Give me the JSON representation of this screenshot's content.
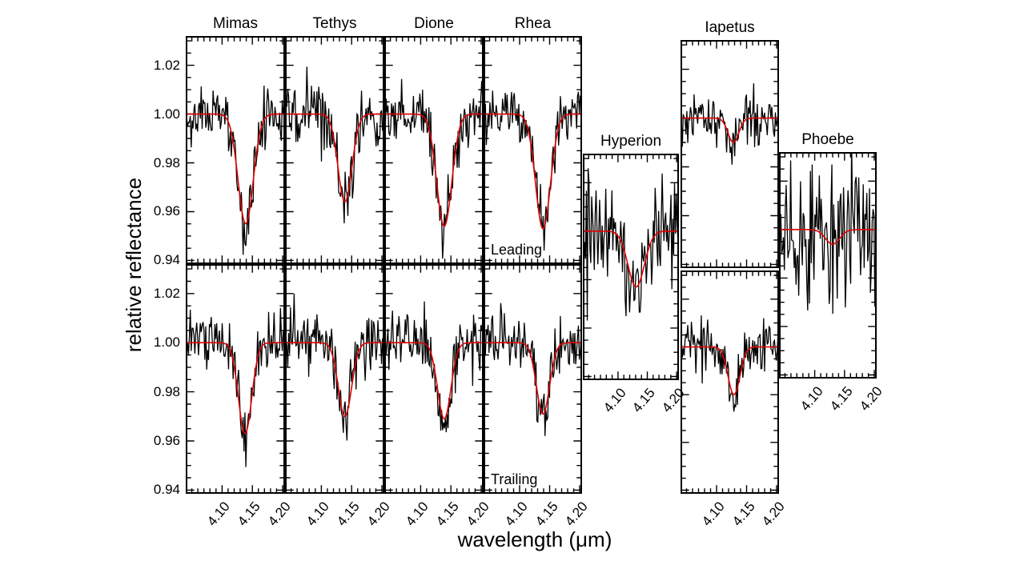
{
  "chart_data": {
    "type": "line",
    "xlabel": "wavelength (μm)",
    "ylabel": "relative reflectance",
    "x_range": [
      4.04,
      4.204
    ],
    "y_range": [
      0.9385,
      1.032
    ],
    "x_ticks": {
      "major": [
        4.1,
        4.15,
        4.2
      ],
      "labels": [
        "4.10",
        "4.15",
        "4.20"
      ],
      "minor_step": 0.01,
      "minor_start": 4.05,
      "minor_end": 4.2
    },
    "y_ticks": {
      "major": [
        1.02,
        1.0,
        0.98,
        0.96,
        0.94
      ],
      "labels": [
        "1.02",
        "1.00",
        "0.98",
        "0.96",
        "0.94"
      ],
      "minor_step": 0.005,
      "minor_start": 0.94,
      "minor_end": 1.03
    },
    "colors": {
      "spectrum": "#000000",
      "fit": "#e00000",
      "axis": "#000000",
      "background": "#ffffff"
    },
    "hemisphere_labels": {
      "leading": "Leading",
      "trailing": "Trailing"
    },
    "panels": [
      {
        "id": "mimas-leading",
        "moon": "Mimas",
        "hemisphere": "leading",
        "title": "Mimas",
        "fit": {
          "center_um": 4.139,
          "sigma_um": 0.0125,
          "band_depth": 0.045,
          "continuum": 1.0
        },
        "noise_sigma": 0.0062,
        "n_points": 110,
        "noise_seed": 11
      },
      {
        "id": "tethys-leading",
        "moon": "Tethys",
        "hemisphere": "leading",
        "title": "Tethys",
        "fit": {
          "center_um": 4.139,
          "sigma_um": 0.0115,
          "band_depth": 0.036,
          "continuum": 1.0
        },
        "noise_sigma": 0.0062,
        "n_points": 110,
        "noise_seed": 22
      },
      {
        "id": "dione-leading",
        "moon": "Dione",
        "hemisphere": "leading",
        "title": "Dione",
        "fit": {
          "center_um": 4.139,
          "sigma_um": 0.0125,
          "band_depth": 0.046,
          "continuum": 1.0
        },
        "noise_sigma": 0.0065,
        "n_points": 110,
        "noise_seed": 33
      },
      {
        "id": "rhea-leading",
        "moon": "Rhea",
        "hemisphere": "leading",
        "title": "Rhea",
        "corner_label": "Leading",
        "fit": {
          "center_um": 4.139,
          "sigma_um": 0.0125,
          "band_depth": 0.047,
          "continuum": 1.0
        },
        "noise_sigma": 0.006,
        "n_points": 110,
        "noise_seed": 44
      },
      {
        "id": "mimas-trailing",
        "moon": "Mimas",
        "hemisphere": "trailing",
        "fit": {
          "center_um": 4.138,
          "sigma_um": 0.011,
          "band_depth": 0.037,
          "continuum": 1.0
        },
        "noise_sigma": 0.0058,
        "n_points": 110,
        "noise_seed": 55
      },
      {
        "id": "tethys-trailing",
        "moon": "Tethys",
        "hemisphere": "trailing",
        "fit": {
          "center_um": 4.139,
          "sigma_um": 0.011,
          "band_depth": 0.03,
          "continuum": 1.0
        },
        "noise_sigma": 0.0058,
        "n_points": 110,
        "noise_seed": 66
      },
      {
        "id": "dione-trailing",
        "moon": "Dione",
        "hemisphere": "trailing",
        "fit": {
          "center_um": 4.139,
          "sigma_um": 0.011,
          "band_depth": 0.031,
          "continuum": 1.0
        },
        "noise_sigma": 0.006,
        "n_points": 110,
        "noise_seed": 77
      },
      {
        "id": "rhea-trailing",
        "moon": "Rhea",
        "hemisphere": "trailing",
        "corner_label": "Trailing",
        "fit": {
          "center_um": 4.139,
          "sigma_um": 0.011,
          "band_depth": 0.029,
          "continuum": 1.0
        },
        "noise_sigma": 0.0056,
        "n_points": 110,
        "noise_seed": 88
      },
      {
        "id": "hyperion",
        "moon": "Hyperion",
        "title": "Hyperion",
        "fit": {
          "center_um": 4.131,
          "sigma_um": 0.014,
          "band_depth": 0.023,
          "continuum": 1.0
        },
        "noise_sigma": 0.011,
        "n_points": 110,
        "noise_seed": 99
      },
      {
        "id": "iapetus-leading",
        "moon": "Iapetus",
        "hemisphere": "leading",
        "title": "Iapetus",
        "fit": {
          "center_um": 4.128,
          "sigma_um": 0.009,
          "band_depth": 0.01,
          "continuum": 1.0
        },
        "noise_sigma": 0.0055,
        "n_points": 110,
        "noise_seed": 111
      },
      {
        "id": "iapetus-trailing",
        "moon": "Iapetus",
        "hemisphere": "trailing",
        "fit": {
          "center_um": 4.129,
          "sigma_um": 0.01,
          "band_depth": 0.02,
          "continuum": 1.0
        },
        "noise_sigma": 0.006,
        "n_points": 110,
        "noise_seed": 122
      },
      {
        "id": "phoebe",
        "moon": "Phoebe",
        "title": "Phoebe",
        "fit": {
          "center_um": 4.13,
          "sigma_um": 0.012,
          "band_depth": 0.006,
          "continuum": 1.0
        },
        "noise_sigma": 0.016,
        "n_points": 110,
        "noise_seed": 133
      }
    ]
  }
}
